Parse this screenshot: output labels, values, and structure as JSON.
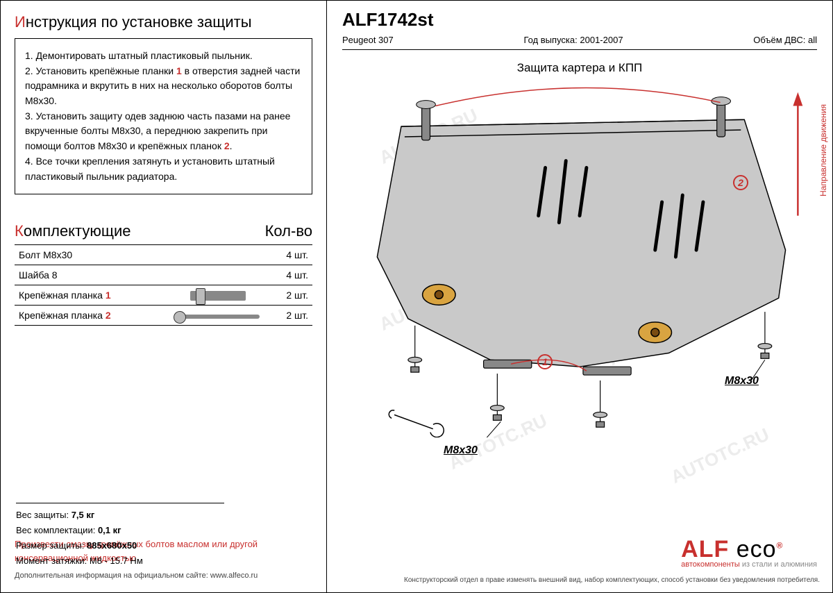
{
  "left": {
    "title_first": "И",
    "title_rest": "нструкция по установке защиты",
    "steps": [
      "1.  Демонтировать штатный пластиковый пыльник.",
      "2.  Установить крепёжные планки <r>1</r> в отверстия задней части подрамника и вкрутить в них на несколько оборотов болты М8х30.",
      "3.  Установить защиту одев заднюю часть пазами на ранее вкрученные болты М8х30, а переднюю закрепить при помощи болтов М8х30 и крепёжных планок <r>2</r>.",
      "4.  Все точки крепления затянуть и установить штатный пластиковый пыльник радиатора."
    ],
    "components_title_first": "К",
    "components_title_rest": "омплектующие",
    "qty_header": "Кол-во",
    "rows": [
      {
        "name": "Болт М8х30",
        "qty": "4 шт."
      },
      {
        "name": "Шайба 8",
        "qty": "4 шт."
      },
      {
        "name": "Крепёжная планка",
        "id": "1",
        "icon": "plank1",
        "qty": "2 шт."
      },
      {
        "name": "Крепёжная планка",
        "id": "2",
        "icon": "plank2",
        "qty": "2 шт."
      }
    ],
    "footer_note": "Произвести смазку крепёжных болтов маслом или другой консервационной жидкостью",
    "footer_link": "Дополнительная информация на официальном сайте: www.alfeco.ru"
  },
  "right": {
    "part_no": "ALF1742st",
    "vehicle": "Peugeot 307",
    "year_label": "Год выпуска:",
    "year": "2001-2007",
    "engine_label": "Объём ДВС:",
    "engine": "all",
    "diagram_title": "Защита картера и КПП",
    "direction_label": "Направление движения",
    "callouts": {
      "marker1": "1",
      "marker2": "2",
      "bolt_a": "М8х30",
      "bolt_b": "М8х30"
    },
    "specs": {
      "weight_label": "Вес защиты:",
      "weight": "7,5 кг",
      "kit_weight_label": "Вес комплектации:",
      "kit_weight": "0,1 кг",
      "size_label": "Размер защиты:",
      "size": "885х680х50",
      "torque_label": "Момент затяжки:",
      "torque": "М8 - 15.7 Нм"
    },
    "logo": {
      "alf": "ALF",
      "eco": "eco",
      "sub_avto": "автокомпоненты",
      "sub_rest": " из стали и алюминия"
    },
    "disclaimer": "Конструкторский отдел в праве изменять внешний вид, набор комплектующих, способ установки без уведомления потребителя."
  },
  "watermark": "AUTOTC.RU",
  "style": {
    "accent": "#c8302e",
    "plate_fill": "#c9c9c9",
    "plate_stroke": "#000000",
    "bg": "#ffffff",
    "text": "#000000",
    "grey": "#888888"
  }
}
